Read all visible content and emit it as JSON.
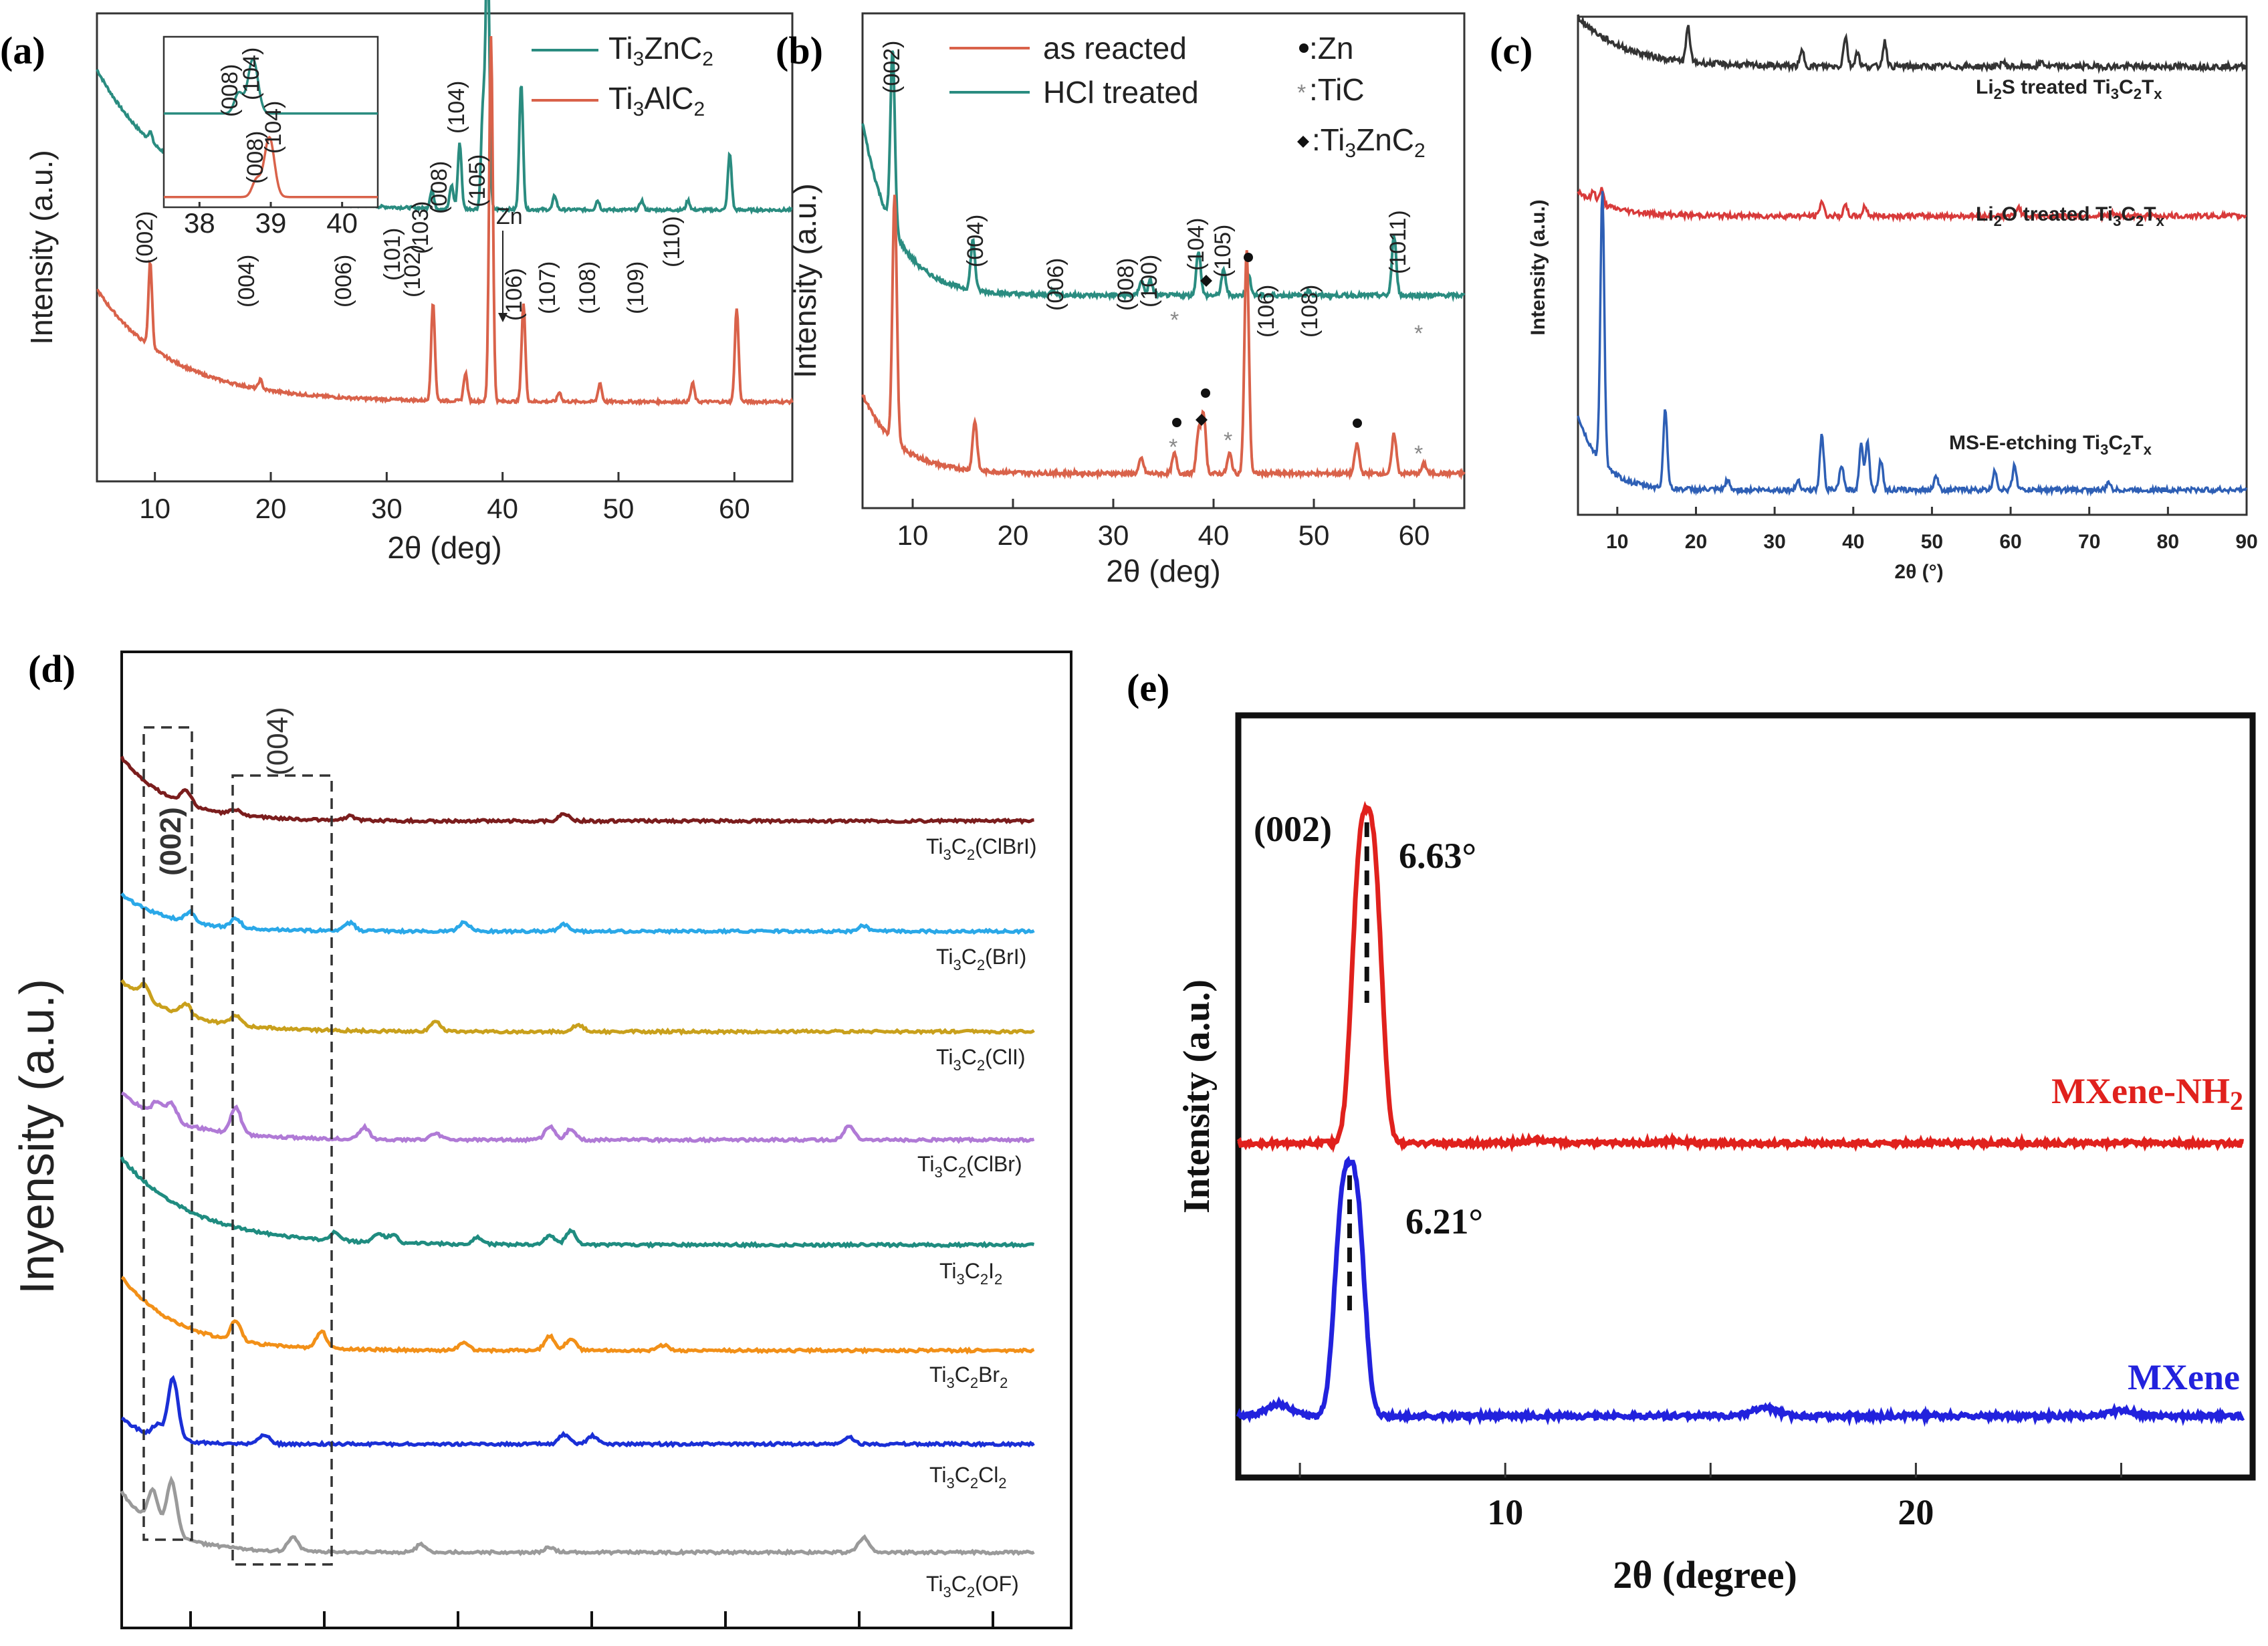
{
  "chart_data": [
    {
      "panel": "(a)",
      "type": "line",
      "xlabel": "2θ (deg)",
      "ylabel": "Intensity (a.u.)",
      "xlim": [
        5,
        65
      ],
      "xticks": [
        10,
        20,
        30,
        40,
        50,
        60
      ],
      "series": [
        {
          "name": "Ti3ZnC2",
          "color": "#2a8c80",
          "base": 0.58,
          "decay": 0.3,
          "peaks": [
            [
              9.6,
              0.02
            ],
            [
              18.6,
              0.02
            ],
            [
              28.6,
              0.03
            ],
            [
              33.9,
              0.04
            ],
            [
              35.6,
              0.05
            ],
            [
              36.3,
              0.14
            ],
            [
              38.3,
              0.21
            ],
            [
              38.7,
              0.58
            ],
            [
              41.6,
              0.27
            ],
            [
              44.5,
              0.03
            ],
            [
              48.2,
              0.02
            ],
            [
              52.0,
              0.02
            ],
            [
              56.0,
              0.02
            ],
            [
              59.6,
              0.12
            ]
          ]
        },
        {
          "name": "Ti3AlC2",
          "color": "#d9624a",
          "base": 0.17,
          "decay": 0.24,
          "peaks": [
            [
              9.6,
              0.18
            ],
            [
              19.1,
              0.02
            ],
            [
              34.0,
              0.21
            ],
            [
              36.8,
              0.06
            ],
            [
              39.0,
              0.78
            ],
            [
              41.8,
              0.21
            ],
            [
              44.9,
              0.02
            ],
            [
              48.4,
              0.04
            ],
            [
              56.4,
              0.04
            ],
            [
              60.2,
              0.2
            ]
          ]
        }
      ],
      "peak_labels": [
        "(002)",
        "(004)",
        "(006)",
        "(101)",
        "(102)",
        "(103)",
        "(008)",
        "(104)",
        "(105)",
        "(106)",
        "(107)",
        "(108)",
        "(109)",
        "(110)"
      ],
      "annotation": "Zn",
      "legend": [
        {
          "name": "Ti3ZnC2",
          "color": "#2a8c80"
        },
        {
          "name": "Ti3AlC2",
          "color": "#d9624a"
        }
      ],
      "legend_labels": {
        "l1a": "Ti",
        "l1s": "3",
        "l1b": "ZnC",
        "l1s2": "2",
        "l2a": "Ti",
        "l2s": "3",
        "l2b": "AlC",
        "l2s2": "2"
      },
      "inset": {
        "xlim": [
          37.5,
          40.5
        ],
        "xticks": [
          38,
          39,
          40
        ],
        "labels": [
          "(008)",
          "(104)",
          "(008)",
          "(104)"
        ]
      }
    },
    {
      "panel": "(b)",
      "type": "line",
      "xlabel": "2θ (deg)",
      "ylabel": "Intensity (a.u.)",
      "xlim": [
        5,
        65
      ],
      "xticks": [
        10,
        20,
        30,
        40,
        50,
        60
      ],
      "series": [
        {
          "name": "as reacted",
          "color": "#d9624a"
        },
        {
          "name": "HCl treated",
          "color": "#2a8c80"
        }
      ],
      "peak_labels": [
        "(002)",
        "(004)",
        "(006)",
        "(008)",
        "(100)",
        "(104)",
        "(105)",
        "(106)",
        "(108)",
        "(1011)"
      ],
      "markers_legend": [
        ":Zn",
        ":TiC",
        ":Ti3ZnC2"
      ],
      "marker_labels": {
        "zn": ":Zn",
        "tic": ":TiC",
        "tz1": ":Ti",
        "tz2": "3",
        "tz3": "ZnC",
        "tz4": "2"
      }
    },
    {
      "panel": "(c)",
      "type": "line",
      "xlabel": "2θ (°)",
      "ylabel": "Intensity (a.u.)",
      "xlim": [
        5,
        90
      ],
      "xticks": [
        10,
        20,
        30,
        40,
        50,
        60,
        70,
        80,
        90
      ],
      "series": [
        {
          "name": "Li2S treated Ti3C2Tx",
          "color": "#333333"
        },
        {
          "name": "Li2O treated Ti3C2Tx",
          "color": "#d83a3a"
        },
        {
          "name": "MS-E-etching Ti3C2Tx",
          "color": "#2e5fb5"
        }
      ],
      "curve_labels": {
        "s1": [
          "Li",
          "2",
          "S treated Ti",
          "3",
          "C",
          "2",
          "T",
          "x"
        ],
        "s2": [
          "Li",
          "2",
          "O treated Ti",
          "3",
          "C",
          "2",
          "T",
          "x"
        ],
        "s3": [
          "MS-E-etching Ti",
          "3",
          "C",
          "2",
          "T",
          "x"
        ]
      }
    },
    {
      "panel": "(d)",
      "type": "line",
      "ylabel": "Inyensity (a.u.)",
      "boxes": [
        "(002)",
        "(004)"
      ],
      "series": [
        {
          "name": "Ti3C2(ClBrI)",
          "color": "#7b1d1d"
        },
        {
          "name": "Ti3C2(BrI)",
          "color": "#2aa8e8"
        },
        {
          "name": "Ti3C2(ClI)",
          "color": "#c9a01c"
        },
        {
          "name": "Ti3C2(ClBr)",
          "color": "#b07ad6"
        },
        {
          "name": "Ti3C2I2",
          "color": "#1f8c80"
        },
        {
          "name": "Ti3C2Br2",
          "color": "#f29018"
        },
        {
          "name": "Ti3C2Cl2",
          "color": "#1a2fd6"
        },
        {
          "name": "Ti3C2(OF)",
          "color": "#9a9a9a"
        }
      ],
      "curve_labels": {
        "s1": [
          "Ti",
          "3",
          "C",
          "2",
          "(ClBrI)"
        ],
        "s2": [
          "Ti",
          "3",
          "C",
          "2",
          "(BrI)"
        ],
        "s3": [
          "Ti",
          "3",
          "C",
          "2",
          "(ClI)"
        ],
        "s4": [
          "Ti",
          "3",
          "C",
          "2",
          "(ClBr)"
        ],
        "s5": [
          "Ti",
          "3",
          "C",
          "2",
          "I",
          "2"
        ],
        "s6": [
          "Ti",
          "3",
          "C",
          "2",
          "Br",
          "2"
        ],
        "s7": [
          "Ti",
          "3",
          "C",
          "2",
          "Cl",
          "2"
        ],
        "s8": [
          "Ti",
          "3",
          "C",
          "2",
          "(OF)"
        ]
      }
    },
    {
      "panel": "(e)",
      "type": "line",
      "xlabel": "2θ (degree)",
      "ylabel": "Intensity (a.u.)",
      "xlim": [
        3.5,
        28.2
      ],
      "xticks": [
        10,
        20
      ],
      "series": [
        {
          "name": "MXene-NH2",
          "color": "#e0211d",
          "peak_deg": 6.63,
          "label": "6.63°"
        },
        {
          "name": "MXene",
          "color": "#2222dd",
          "peak_deg": 6.21,
          "label": "6.21°"
        }
      ],
      "peak_label": "(002)",
      "name_labels": {
        "nh2a": "MXene-NH",
        "nh2b": "2",
        "mx": "MXene"
      }
    }
  ]
}
